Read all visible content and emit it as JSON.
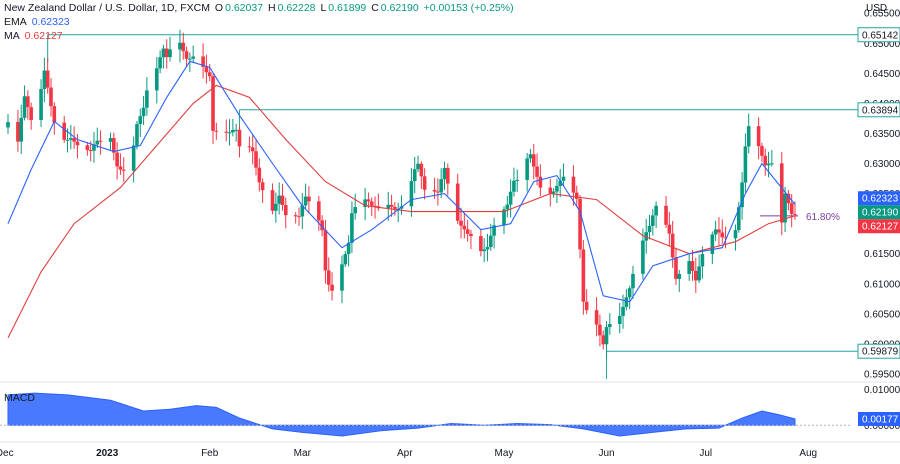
{
  "header": {
    "symbol_title": "New Zealand Dollar / U.S. Dollar, 1D, FXCM",
    "o_label": "O",
    "o_value": "0.62037",
    "h_label": "H",
    "h_value": "0.62228",
    "l_label": "L",
    "l_value": "0.61899",
    "c_label": "C",
    "c_value": "0.62190",
    "change": "+0.00153 (+0.25%)",
    "ema_label": "EMA",
    "ema_value": "0.62323",
    "ma_label": "MA",
    "ma_value": "0.62127",
    "macd_label": "MACD"
  },
  "colors": {
    "up": "#089981",
    "down": "#f23645",
    "ema": "#2962ff",
    "ma": "#e03e3e",
    "level_line": "#22a3a3",
    "fib": "#7b3fa0",
    "macd_fill": "#2962ff"
  },
  "chart_data": [
    {
      "type": "candlestick",
      "title": "New Zealand Dollar / U.S. Dollar, 1D, FXCM",
      "ylabel": "USD",
      "ylim": [
        0.594,
        0.6572
      ],
      "x_range": [
        "2022-12-02",
        "2023-07-28"
      ],
      "x_ticks": [
        {
          "date": "2022-12-01",
          "label": "Dec"
        },
        {
          "date": "2023-01-01",
          "label": "2023"
        },
        {
          "date": "2023-02-01",
          "label": "Feb"
        },
        {
          "date": "2023-03-01",
          "label": "Mar"
        },
        {
          "date": "2023-04-01",
          "label": "Apr"
        },
        {
          "date": "2023-05-01",
          "label": "May"
        },
        {
          "date": "2023-06-01",
          "label": "Jun"
        },
        {
          "date": "2023-07-01",
          "label": "Jul"
        },
        {
          "date": "2023-08-01",
          "label": "Aug"
        }
      ],
      "y_ticks": [
        "0.65500",
        "0.65000",
        "0.64500",
        "0.64000",
        "0.63500",
        "0.63000",
        "0.62500",
        "0.62000",
        "0.61500",
        "0.61000",
        "0.60500",
        "0.60000",
        "0.59500"
      ],
      "close_path": [
        [
          "2022-12-02",
          0.636
        ],
        [
          "2022-12-05",
          0.632
        ],
        [
          "2022-12-07",
          0.639
        ],
        [
          "2022-12-09",
          0.636
        ],
        [
          "2022-12-12",
          0.642
        ],
        [
          "2022-12-13",
          0.646
        ],
        [
          "2022-12-14",
          0.644
        ],
        [
          "2022-12-16",
          0.639
        ],
        [
          "2022-12-19",
          0.636
        ],
        [
          "2022-12-21",
          0.635
        ],
        [
          "2022-12-23",
          0.632
        ],
        [
          "2022-12-27",
          0.63
        ],
        [
          "2022-12-29",
          0.632
        ],
        [
          "2023-01-02",
          0.634
        ],
        [
          "2023-01-04",
          0.631
        ],
        [
          "2023-01-06",
          0.631
        ],
        [
          "2023-01-09",
          0.635
        ],
        [
          "2023-01-10",
          0.638
        ],
        [
          "2023-01-12",
          0.639
        ],
        [
          "2023-01-13",
          0.641
        ],
        [
          "2023-01-16",
          0.644
        ],
        [
          "2023-01-18",
          0.647
        ],
        [
          "2023-01-19",
          0.646
        ],
        [
          "2023-01-20",
          0.648
        ],
        [
          "2023-01-23",
          0.65
        ],
        [
          "2023-01-25",
          0.649
        ],
        [
          "2023-01-27",
          0.65
        ],
        [
          "2023-01-30",
          0.648
        ],
        [
          "2023-02-01",
          0.645
        ],
        [
          "2023-02-02",
          0.635
        ],
        [
          "2023-02-03",
          0.634
        ],
        [
          "2023-02-07",
          0.633
        ],
        [
          "2023-02-09",
          0.634
        ],
        [
          "2023-02-10",
          0.632
        ],
        [
          "2023-02-14",
          0.633
        ],
        [
          "2023-02-16",
          0.629
        ],
        [
          "2023-02-20",
          0.624
        ],
        [
          "2023-02-22",
          0.625
        ],
        [
          "2023-02-24",
          0.62
        ],
        [
          "2023-02-28",
          0.619
        ],
        [
          "2023-03-02",
          0.623
        ],
        [
          "2023-03-03",
          0.623
        ],
        [
          "2023-03-07",
          0.62
        ],
        [
          "2023-03-08",
          0.614
        ],
        [
          "2023-03-09",
          0.612
        ],
        [
          "2023-03-10",
          0.611
        ],
        [
          "2023-03-13",
          0.615
        ],
        [
          "2023-03-15",
          0.617
        ],
        [
          "2023-03-16",
          0.621
        ],
        [
          "2023-03-20",
          0.622
        ],
        [
          "2023-03-22",
          0.621
        ],
        [
          "2023-03-24",
          0.622
        ],
        [
          "2023-03-28",
          0.624
        ],
        [
          "2023-03-31",
          0.625
        ],
        [
          "2023-04-04",
          0.63
        ],
        [
          "2023-04-05",
          0.63
        ],
        [
          "2023-04-07",
          0.624
        ],
        [
          "2023-04-11",
          0.623
        ],
        [
          "2023-04-13",
          0.628
        ],
        [
          "2023-04-17",
          0.621
        ],
        [
          "2023-04-19",
          0.621
        ],
        [
          "2023-04-21",
          0.62
        ],
        [
          "2023-04-24",
          0.617
        ],
        [
          "2023-04-26",
          0.616
        ],
        [
          "2023-04-28",
          0.618
        ],
        [
          "2023-05-02",
          0.621
        ],
        [
          "2023-05-04",
          0.626
        ],
        [
          "2023-05-05",
          0.627
        ],
        [
          "2023-05-09",
          0.633
        ],
        [
          "2023-05-11",
          0.63
        ],
        [
          "2023-05-12",
          0.628
        ],
        [
          "2023-05-16",
          0.626
        ],
        [
          "2023-05-19",
          0.626
        ],
        [
          "2023-05-23",
          0.622
        ],
        [
          "2023-05-25",
          0.606
        ],
        [
          "2023-05-29",
          0.604
        ],
        [
          "2023-05-31",
          0.602
        ],
        [
          "2023-06-01",
          0.605
        ],
        [
          "2023-06-05",
          0.606
        ],
        [
          "2023-06-08",
          0.608
        ],
        [
          "2023-06-12",
          0.615
        ],
        [
          "2023-06-14",
          0.618
        ],
        [
          "2023-06-16",
          0.623
        ],
        [
          "2023-06-20",
          0.62
        ],
        [
          "2023-06-22",
          0.613
        ],
        [
          "2023-06-26",
          0.615
        ],
        [
          "2023-06-28",
          0.61
        ],
        [
          "2023-06-30",
          0.613
        ],
        [
          "2023-07-04",
          0.617
        ],
        [
          "2023-07-06",
          0.617
        ],
        [
          "2023-07-10",
          0.62
        ],
        [
          "2023-07-12",
          0.629
        ],
        [
          "2023-07-13",
          0.635
        ],
        [
          "2023-07-14",
          0.638
        ],
        [
          "2023-07-17",
          0.634
        ],
        [
          "2023-07-19",
          0.629
        ],
        [
          "2023-07-21",
          0.628
        ],
        [
          "2023-07-24",
          0.618
        ],
        [
          "2023-07-25",
          0.623
        ],
        [
          "2023-07-27",
          0.621
        ],
        [
          "2023-07-28",
          0.6219
        ]
      ],
      "series": [
        {
          "name": "EMA",
          "color": "#2962ff",
          "last_value": 0.62323
        },
        {
          "name": "MA",
          "color": "#e03e3e",
          "last_value": 0.62127
        }
      ],
      "ema_path": [
        [
          "2022-12-02",
          0.62
        ],
        [
          "2022-12-09",
          0.629
        ],
        [
          "2022-12-16",
          0.637
        ],
        [
          "2022-12-23",
          0.634
        ],
        [
          "2023-01-03",
          0.632
        ],
        [
          "2023-01-11",
          0.633
        ],
        [
          "2023-01-19",
          0.641
        ],
        [
          "2023-01-26",
          0.647
        ],
        [
          "2023-02-01",
          0.646
        ],
        [
          "2023-02-10",
          0.638
        ],
        [
          "2023-02-20",
          0.63
        ],
        [
          "2023-03-01",
          0.623
        ],
        [
          "2023-03-13",
          0.616
        ],
        [
          "2023-03-22",
          0.619
        ],
        [
          "2023-04-03",
          0.624
        ],
        [
          "2023-04-13",
          0.625
        ],
        [
          "2023-04-24",
          0.619
        ],
        [
          "2023-05-03",
          0.62
        ],
        [
          "2023-05-10",
          0.627
        ],
        [
          "2023-05-17",
          0.628
        ],
        [
          "2023-05-24",
          0.622
        ],
        [
          "2023-05-31",
          0.608
        ],
        [
          "2023-06-08",
          0.607
        ],
        [
          "2023-06-15",
          0.613
        ],
        [
          "2023-06-26",
          0.615
        ],
        [
          "2023-07-06",
          0.616
        ],
        [
          "2023-07-13",
          0.625
        ],
        [
          "2023-07-18",
          0.63
        ],
        [
          "2023-07-28",
          0.6232
        ]
      ],
      "ma_path": [
        [
          "2022-12-02",
          0.601
        ],
        [
          "2022-12-12",
          0.612
        ],
        [
          "2022-12-22",
          0.62
        ],
        [
          "2023-01-05",
          0.626
        ],
        [
          "2023-01-16",
          0.633
        ],
        [
          "2023-01-27",
          0.64
        ],
        [
          "2023-02-03",
          0.643
        ],
        [
          "2023-02-13",
          0.641
        ],
        [
          "2023-02-24",
          0.634
        ],
        [
          "2023-03-08",
          0.627
        ],
        [
          "2023-03-20",
          0.623
        ],
        [
          "2023-04-03",
          0.622
        ],
        [
          "2023-04-17",
          0.622
        ],
        [
          "2023-05-01",
          0.622
        ],
        [
          "2023-05-15",
          0.625
        ],
        [
          "2023-05-29",
          0.624
        ],
        [
          "2023-06-12",
          0.618
        ],
        [
          "2023-06-26",
          0.615
        ],
        [
          "2023-07-10",
          0.617
        ],
        [
          "2023-07-20",
          0.62
        ],
        [
          "2023-07-28",
          0.6213
        ]
      ],
      "horizontal_levels": [
        {
          "label": "0.65142",
          "value": 0.65142,
          "from": "2022-12-14"
        },
        {
          "label": "0.63894",
          "value": 0.63894,
          "from": "2023-02-10"
        },
        {
          "label": "0.59879",
          "value": 0.59879,
          "from": "2023-06-01"
        }
      ],
      "fib_level": {
        "label": "61.80%",
        "value": 0.6213
      },
      "price_tags": [
        {
          "label": "0.62323",
          "value": 0.62323,
          "bg": "#2962ff"
        },
        {
          "label": "0.62190",
          "value": 0.6219,
          "bg": "#089981"
        },
        {
          "label": "0.62127",
          "value": 0.62127,
          "bg": "#f23645"
        }
      ]
    },
    {
      "type": "area",
      "title": "MACD",
      "ylim": [
        -0.003,
        0.011
      ],
      "y_ticks": [
        "0.01000",
        "0.00000"
      ],
      "last_value_label": "0.00177",
      "last_value": 0.00177,
      "values": [
        [
          "2022-12-02",
          0.0085
        ],
        [
          "2022-12-10",
          0.009
        ],
        [
          "2022-12-20",
          0.0085
        ],
        [
          "2023-01-02",
          0.007
        ],
        [
          "2023-01-12",
          0.004
        ],
        [
          "2023-01-20",
          0.0045
        ],
        [
          "2023-01-28",
          0.0055
        ],
        [
          "2023-02-03",
          0.005
        ],
        [
          "2023-02-10",
          0.002
        ],
        [
          "2023-02-20",
          -0.001
        ],
        [
          "2023-03-01",
          -0.002
        ],
        [
          "2023-03-13",
          -0.003
        ],
        [
          "2023-03-25",
          -0.0015
        ],
        [
          "2023-04-05",
          -0.0008
        ],
        [
          "2023-04-15",
          0.0005
        ],
        [
          "2023-04-25",
          0.0
        ],
        [
          "2023-05-05",
          0.0005
        ],
        [
          "2023-05-15",
          0.0002
        ],
        [
          "2023-05-25",
          -0.001
        ],
        [
          "2023-06-05",
          -0.003
        ],
        [
          "2023-06-15",
          -0.002
        ],
        [
          "2023-06-25",
          -0.001
        ],
        [
          "2023-07-05",
          -0.0008
        ],
        [
          "2023-07-12",
          0.002
        ],
        [
          "2023-07-18",
          0.004
        ],
        [
          "2023-07-23",
          0.003
        ],
        [
          "2023-07-28",
          0.0018
        ]
      ]
    }
  ]
}
